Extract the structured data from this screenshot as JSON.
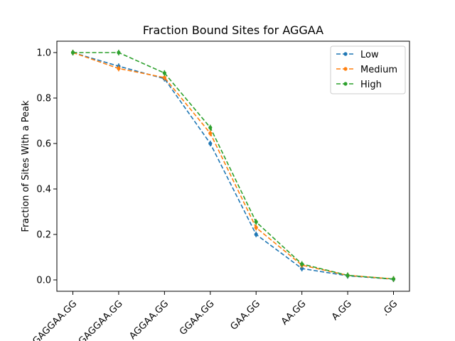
{
  "chart_data": {
    "type": "line",
    "title": "Fraction Bound Sites for AGGAA",
    "xlabel": "",
    "ylabel": "Fraction of Sites With a Peak",
    "categories": [
      "GAGGAA.GG",
      "GAGGAA.GG",
      "AGGAA.GG",
      "GGAA.GG",
      "GAA.GG",
      "AA.GG",
      "A.GG",
      ".GG"
    ],
    "ylim": [
      -0.05,
      1.05
    ],
    "yticks": [
      0.0,
      0.2,
      0.4,
      0.6,
      0.8,
      1.0
    ],
    "ytick_labels": [
      "0.0",
      "0.2",
      "0.4",
      "0.6",
      "0.8",
      "1.0"
    ],
    "legend_position": "top-right",
    "series": [
      {
        "name": "Low",
        "color": "#1f77b4",
        "values": [
          1.0,
          0.94,
          0.885,
          0.6,
          0.2,
          0.05,
          0.018,
          0.003
        ]
      },
      {
        "name": "Medium",
        "color": "#ff7f0e",
        "values": [
          1.0,
          0.93,
          0.89,
          0.645,
          0.23,
          0.065,
          0.02,
          0.004
        ]
      },
      {
        "name": "High",
        "color": "#2ca02c",
        "values": [
          1.0,
          1.0,
          0.91,
          0.67,
          0.255,
          0.07,
          0.02,
          0.004
        ]
      }
    ]
  }
}
